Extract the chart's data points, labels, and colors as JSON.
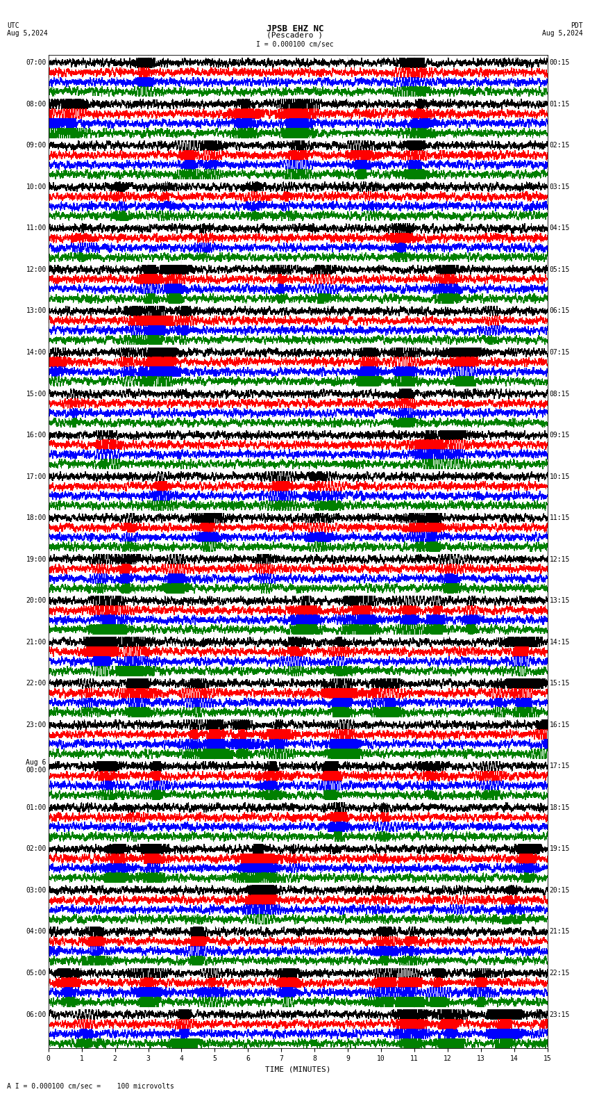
{
  "title_line1": "JPSB EHZ NC",
  "title_line2": "(Pescadero )",
  "scale_text": "I = 0.000100 cm/sec",
  "utc_label": "UTC",
  "utc_date": "Aug 5,2024",
  "pdt_label": "PDT",
  "pdt_date": "Aug 5,2024",
  "bottom_label": "A I = 0.000100 cm/sec =    100 microvolts",
  "xlabel": "TIME (MINUTES)",
  "left_times": [
    "07:00",
    "08:00",
    "09:00",
    "10:00",
    "11:00",
    "12:00",
    "13:00",
    "14:00",
    "15:00",
    "16:00",
    "17:00",
    "18:00",
    "19:00",
    "20:00",
    "21:00",
    "22:00",
    "23:00",
    "Aug 6\n00:00",
    "01:00",
    "02:00",
    "03:00",
    "04:00",
    "05:00",
    "06:00"
  ],
  "right_times": [
    "00:15",
    "01:15",
    "02:15",
    "03:15",
    "04:15",
    "05:15",
    "06:15",
    "07:15",
    "08:15",
    "09:15",
    "10:15",
    "11:15",
    "12:15",
    "13:15",
    "14:15",
    "15:15",
    "16:15",
    "17:15",
    "18:15",
    "19:15",
    "20:15",
    "21:15",
    "22:15",
    "23:15"
  ],
  "n_rows": 24,
  "traces_per_row": 4,
  "colors": [
    "black",
    "red",
    "blue",
    "green"
  ],
  "bg_color": "#ffffff",
  "xticks": [
    0,
    1,
    2,
    3,
    4,
    5,
    6,
    7,
    8,
    9,
    10,
    11,
    12,
    13,
    14,
    15
  ],
  "xmin": 0,
  "xmax": 15,
  "fig_width": 8.5,
  "fig_height": 15.84,
  "title_fontsize": 9,
  "label_fontsize": 7,
  "tick_fontsize": 7,
  "time_fontsize": 7,
  "noise_base_amp": 1.0
}
